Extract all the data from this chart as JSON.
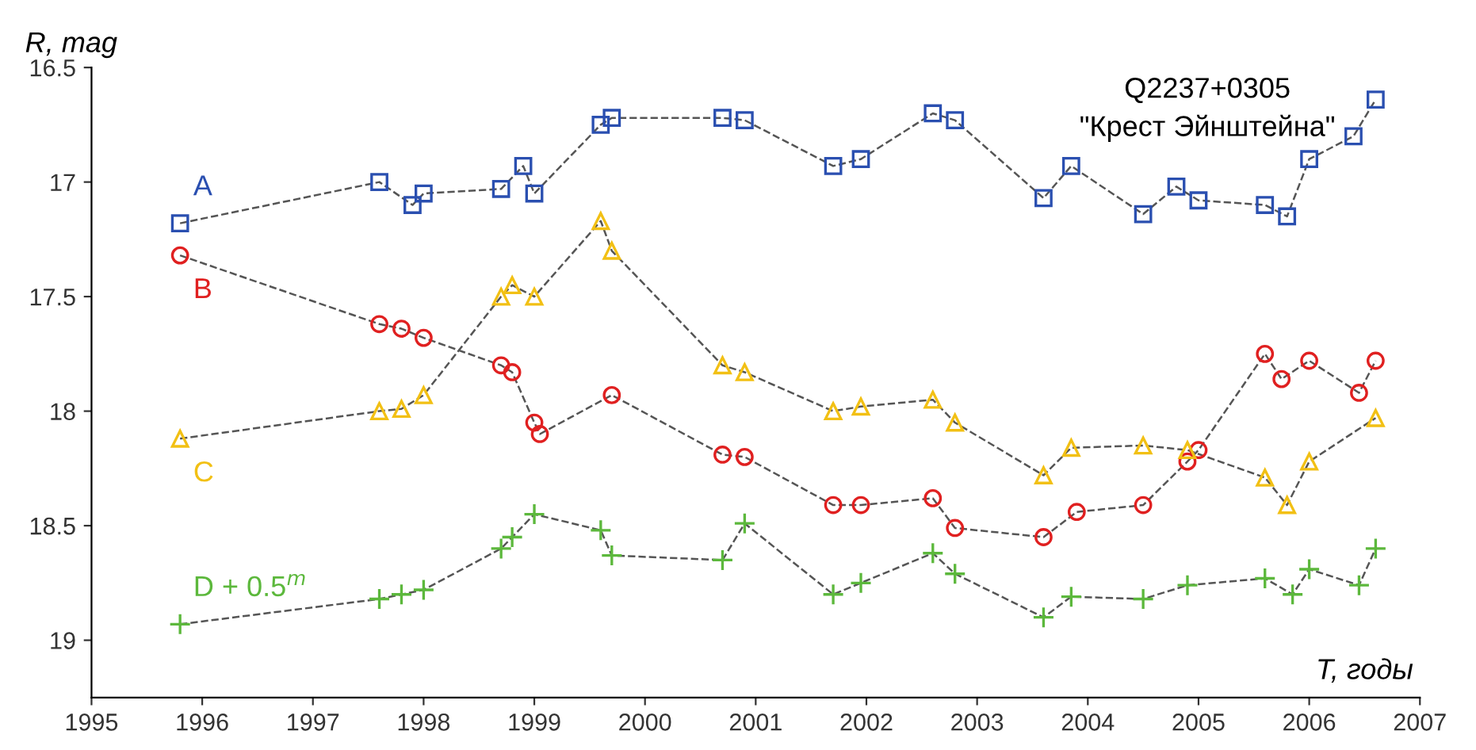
{
  "chart_data": {
    "type": "line",
    "title": "Q2237+0305",
    "subtitle": "\"Крест Эйнштейна\"",
    "xlabel": "T, годы",
    "ylabel": "R, mag",
    "xlim": [
      1995,
      2007
    ],
    "xticks": [
      1995,
      1996,
      1997,
      1998,
      1999,
      2000,
      2001,
      2002,
      2003,
      2004,
      2005,
      2006,
      2007
    ],
    "ylim": [
      19.25,
      16.5
    ],
    "yticks": [
      16.5,
      17,
      17.5,
      18,
      18.5,
      19
    ],
    "grid": false,
    "legend": false,
    "line_style": "dashed",
    "series": [
      {
        "name": "A",
        "color": "#2a4fb0",
        "marker": "square",
        "x": [
          1995.8,
          1997.6,
          1997.9,
          1998.0,
          1998.7,
          1998.9,
          1999.0,
          1999.6,
          1999.7,
          2000.7,
          2000.9,
          2001.7,
          2001.95,
          2002.6,
          2002.8,
          2003.6,
          2003.85,
          2004.5,
          2004.8,
          2005.0,
          2005.6,
          2005.8,
          2006.0,
          2006.4,
          2006.6
        ],
        "values": [
          17.18,
          17.0,
          17.1,
          17.05,
          17.03,
          16.93,
          17.05,
          16.75,
          16.72,
          16.72,
          16.73,
          16.93,
          16.9,
          16.7,
          16.73,
          17.07,
          16.93,
          17.14,
          17.02,
          17.08,
          17.1,
          17.15,
          16.9,
          16.8,
          16.64
        ]
      },
      {
        "name": "B",
        "color": "#e02020",
        "marker": "circle",
        "x": [
          1995.8,
          1997.6,
          1997.8,
          1998.0,
          1998.7,
          1998.8,
          1999.0,
          1999.05,
          1999.7,
          2000.7,
          2000.9,
          2001.7,
          2001.95,
          2002.6,
          2002.8,
          2003.6,
          2003.9,
          2004.5,
          2004.9,
          2005.0,
          2005.6,
          2005.75,
          2006.0,
          2006.45,
          2006.6
        ],
        "values": [
          17.32,
          17.62,
          17.64,
          17.68,
          17.8,
          17.83,
          18.05,
          18.1,
          17.93,
          18.19,
          18.2,
          18.41,
          18.41,
          18.38,
          18.51,
          18.55,
          18.44,
          18.41,
          18.22,
          18.17,
          17.75,
          17.86,
          17.78,
          17.92,
          17.78
        ]
      },
      {
        "name": "C",
        "color": "#f2c014",
        "marker": "triangle",
        "x": [
          1995.8,
          1997.6,
          1997.8,
          1998.0,
          1998.7,
          1998.8,
          1999.0,
          1999.6,
          1999.7,
          2000.7,
          2000.9,
          2001.7,
          2001.95,
          2002.6,
          2002.8,
          2003.6,
          2003.85,
          2004.5,
          2004.9,
          2005.6,
          2005.8,
          2006.0,
          2006.6
        ],
        "values": [
          18.12,
          18.0,
          17.99,
          17.93,
          17.5,
          17.45,
          17.5,
          17.17,
          17.3,
          17.8,
          17.83,
          18.0,
          17.98,
          17.95,
          18.05,
          18.28,
          18.16,
          18.15,
          18.17,
          18.29,
          18.41,
          18.22,
          18.03
        ]
      },
      {
        "name": "D + 0.5$^{m}$",
        "color": "#5cb83c",
        "marker": "cross",
        "x": [
          1995.8,
          1997.6,
          1997.8,
          1998.0,
          1998.7,
          1998.8,
          1999.0,
          1999.6,
          1999.7,
          2000.7,
          2000.9,
          2001.7,
          2001.95,
          2002.6,
          2002.8,
          2003.6,
          2003.85,
          2004.5,
          2004.9,
          2005.6,
          2005.85,
          2006.0,
          2006.45,
          2006.6
        ],
        "values": [
          18.93,
          18.82,
          18.8,
          18.78,
          18.6,
          18.55,
          18.45,
          18.52,
          18.63,
          18.65,
          18.49,
          18.8,
          18.75,
          18.62,
          18.71,
          18.9,
          18.81,
          18.82,
          18.76,
          18.73,
          18.8,
          18.69,
          18.76,
          18.6
        ]
      }
    ]
  }
}
